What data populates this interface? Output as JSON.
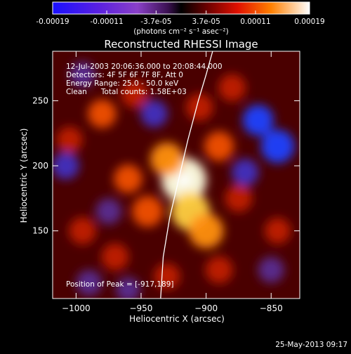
{
  "colorbar": {
    "tick_labels": [
      "-0.00019",
      "-0.00011",
      "-3.7e-05",
      "3.7e-05",
      "0.00011",
      "0.00019"
    ],
    "tick_values": [
      -0.00019,
      -0.00011,
      -3.7e-05,
      3.7e-05,
      0.00011,
      0.00019
    ],
    "range": [
      -0.00019,
      0.00019
    ],
    "unit_label": "(photons cm⁻² s⁻¹ asec⁻²)"
  },
  "chart_data": {
    "type": "heatmap",
    "title": "Reconstructed RHESSI Image",
    "xlabel": "Heliocentric X (arcsec)",
    "ylabel": "Heliocentric Y (arcsec)",
    "xlim": [
      -1018,
      -828
    ],
    "ylim": [
      98,
      288
    ],
    "x_ticks": [
      -1000,
      -950,
      -900,
      -850
    ],
    "x_tick_labels": [
      "−1000",
      "−950",
      "−900",
      "−850"
    ],
    "y_ticks": [
      150,
      200,
      250
    ],
    "y_tick_labels": [
      "150",
      "200",
      "250"
    ],
    "peak": {
      "x": -917,
      "y": 189,
      "value": 0.00019
    },
    "limb": [
      [
        -935,
        98
      ],
      [
        -933,
        130
      ],
      [
        -928,
        160
      ],
      [
        -921,
        190
      ],
      [
        -914,
        220
      ],
      [
        -906,
        250
      ],
      [
        -900,
        270
      ],
      [
        -895,
        288
      ]
    ],
    "blobs": [
      {
        "x": -917,
        "y": 189,
        "v": 1.0
      },
      {
        "x": -912,
        "y": 165,
        "v": 0.75
      },
      {
        "x": -900,
        "y": 150,
        "v": 0.6
      },
      {
        "x": -930,
        "y": 205,
        "v": 0.55
      },
      {
        "x": -890,
        "y": 215,
        "v": 0.4
      },
      {
        "x": -945,
        "y": 165,
        "v": 0.45
      },
      {
        "x": -960,
        "y": 190,
        "v": 0.35
      },
      {
        "x": -980,
        "y": 240,
        "v": 0.35
      },
      {
        "x": -955,
        "y": 255,
        "v": 0.3
      },
      {
        "x": -905,
        "y": 245,
        "v": 0.3
      },
      {
        "x": -880,
        "y": 260,
        "v": 0.3
      },
      {
        "x": -995,
        "y": 150,
        "v": 0.3
      },
      {
        "x": -970,
        "y": 130,
        "v": 0.3
      },
      {
        "x": -875,
        "y": 175,
        "v": 0.3
      },
      {
        "x": -845,
        "y": 150,
        "v": 0.25
      },
      {
        "x": -890,
        "y": 120,
        "v": 0.3
      },
      {
        "x": -930,
        "y": 115,
        "v": 0.25
      },
      {
        "x": -1005,
        "y": 220,
        "v": 0.25
      },
      {
        "x": -860,
        "y": 235,
        "v": -0.45
      },
      {
        "x": -845,
        "y": 215,
        "v": -0.55
      },
      {
        "x": -1008,
        "y": 200,
        "v": -0.3
      },
      {
        "x": -940,
        "y": 240,
        "v": -0.3
      },
      {
        "x": -995,
        "y": 270,
        "v": -0.25
      },
      {
        "x": -870,
        "y": 195,
        "v": -0.3
      },
      {
        "x": -990,
        "y": 110,
        "v": -0.25
      },
      {
        "x": -960,
        "y": 105,
        "v": -0.2
      },
      {
        "x": -850,
        "y": 120,
        "v": -0.25
      },
      {
        "x": -975,
        "y": 165,
        "v": -0.25
      }
    ]
  },
  "annotations": {
    "time_range": "12-Jul-2003 20:06:36.000 to 20:08:44.000",
    "detectors": "Detectors: 4F 5F 6F 7F 8F, Att 0",
    "energy": "Energy Range: 25.0 - 50.0 keV",
    "clean": "Clean      Total counts: 1.58E+03",
    "peak": "Position of Peak = [-917,189]"
  },
  "footer": {
    "timestamp": "25-May-2013 09:17"
  }
}
